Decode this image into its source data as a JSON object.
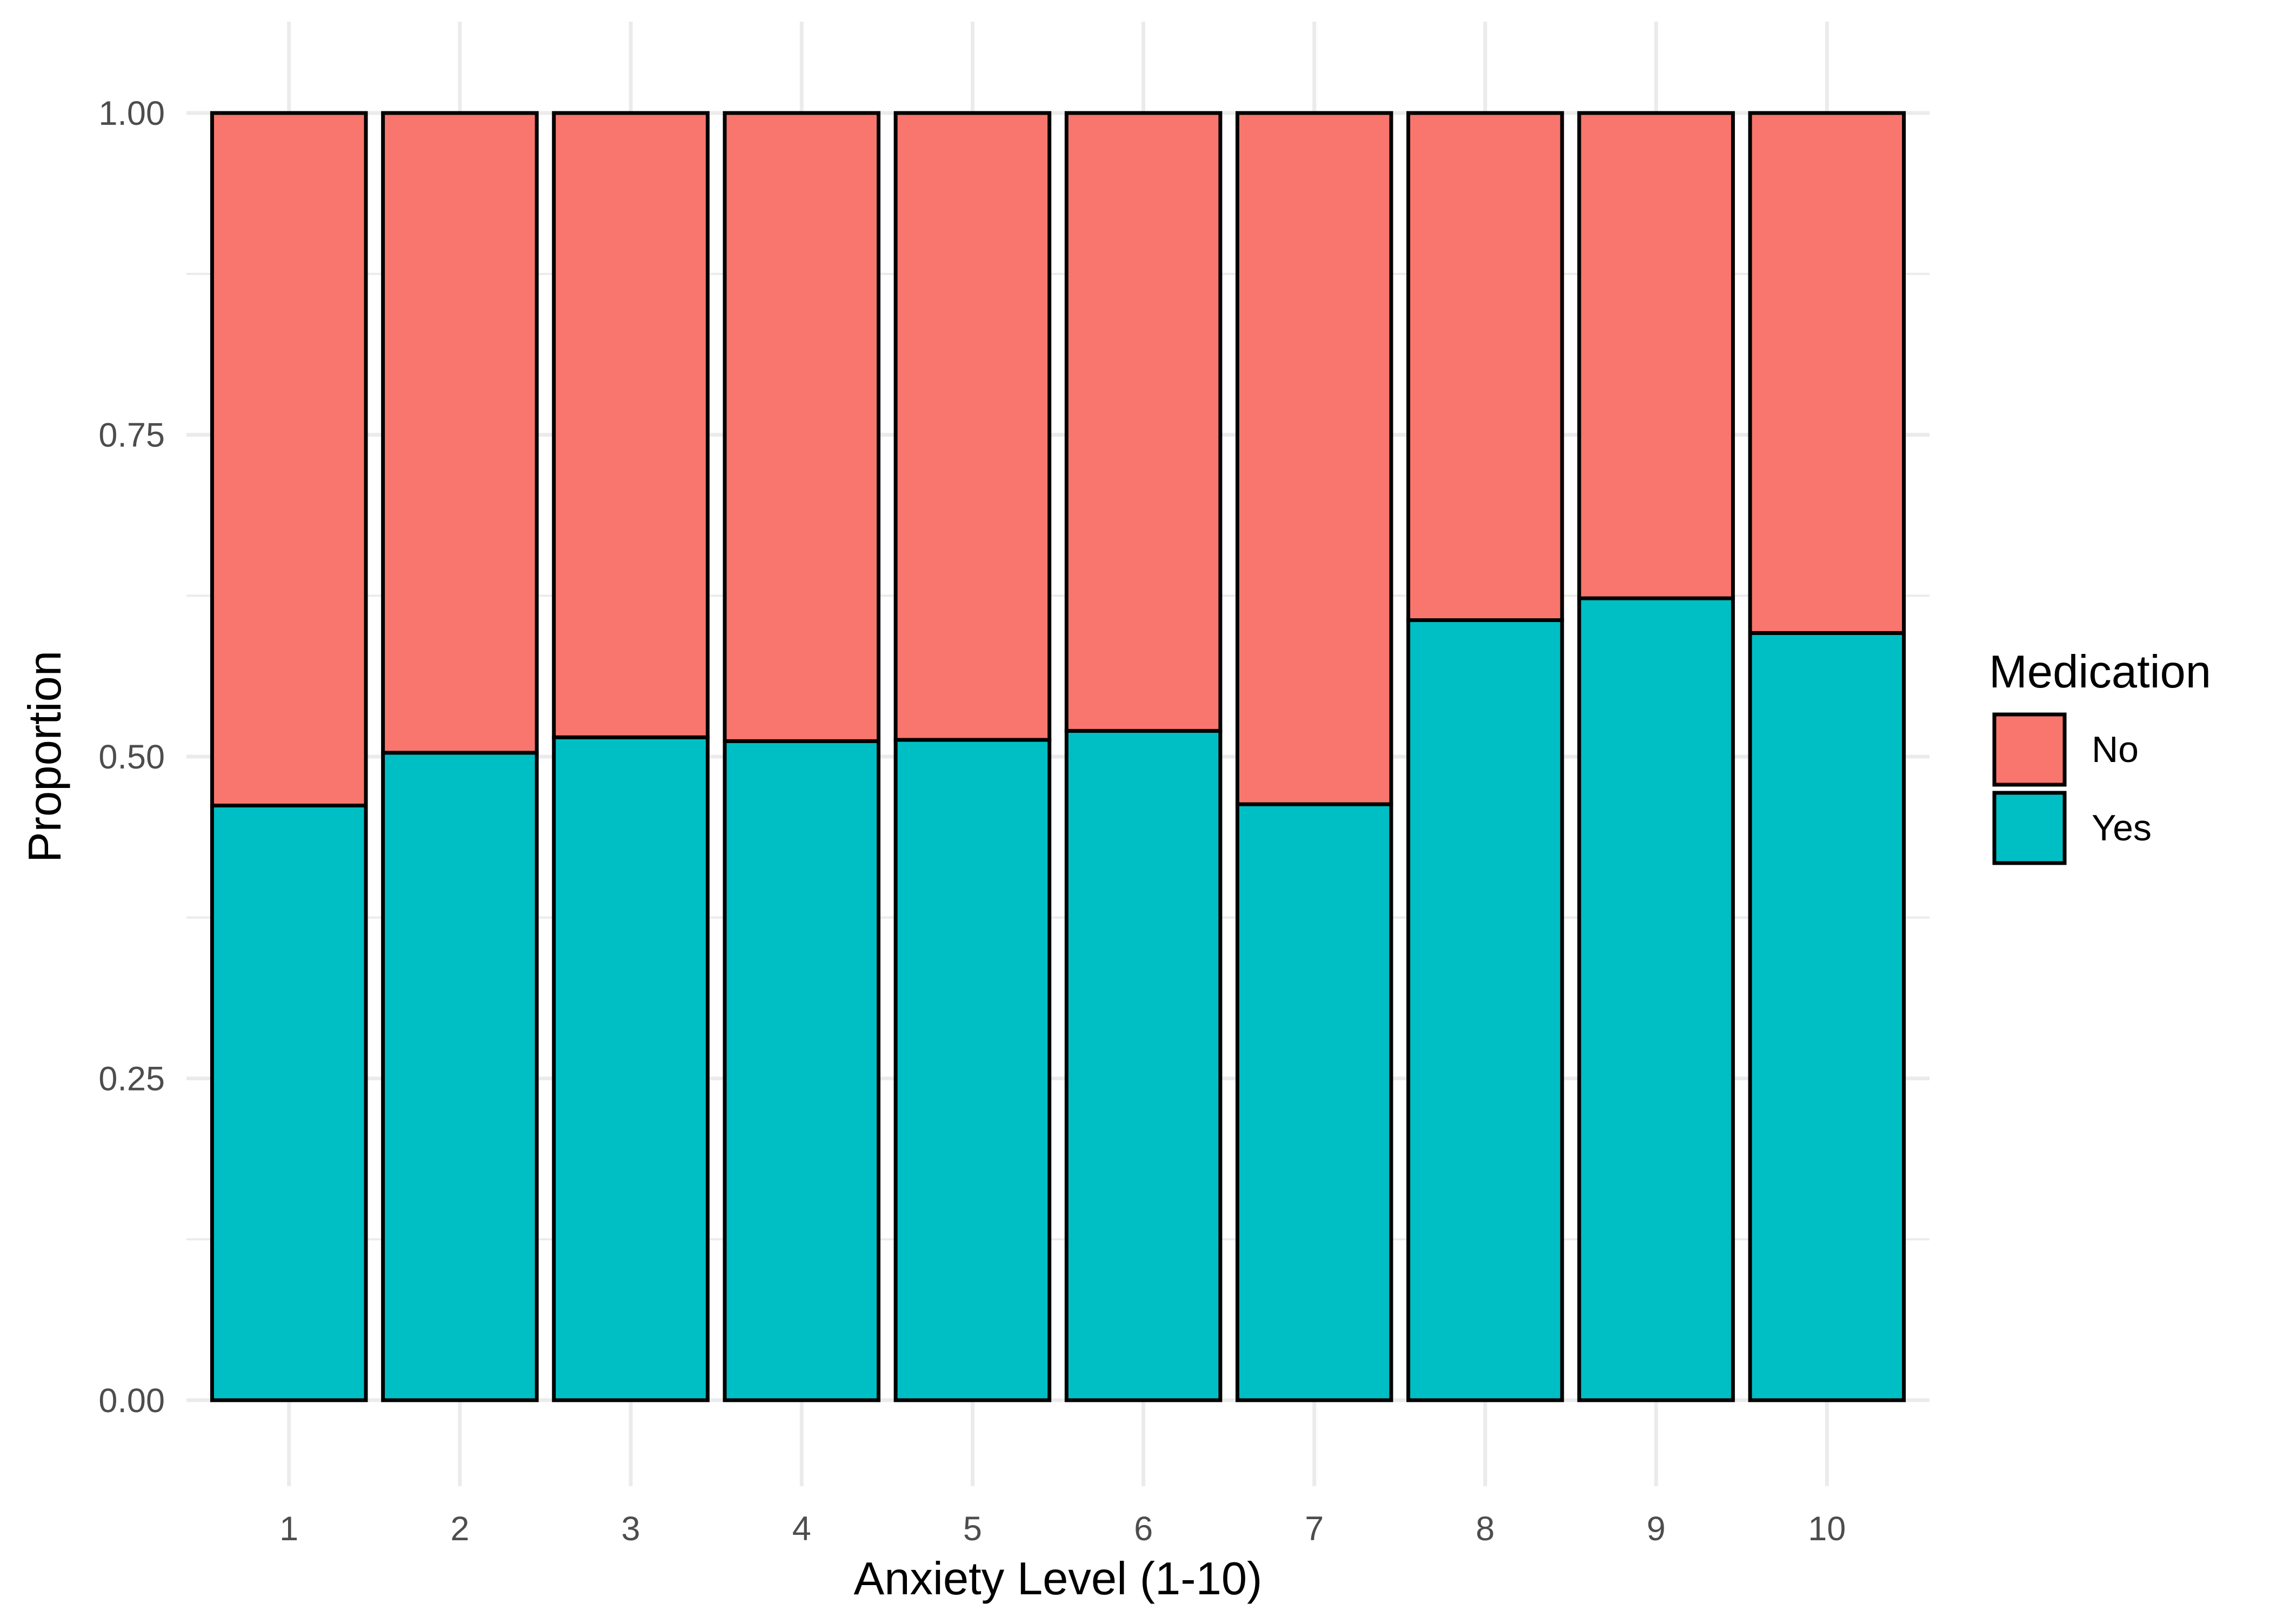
{
  "chart_data": {
    "type": "bar",
    "stacked": true,
    "title": "",
    "xlabel": "Anxiety Level (1-10)",
    "ylabel": "Proportion",
    "categories": [
      "1",
      "2",
      "3",
      "4",
      "5",
      "6",
      "7",
      "8",
      "9",
      "10"
    ],
    "series": [
      {
        "name": "Yes",
        "color": "#00BFC4",
        "values": [
          0.462,
          0.503,
          0.515,
          0.512,
          0.513,
          0.52,
          0.463,
          0.606,
          0.623,
          0.596
        ]
      },
      {
        "name": "No",
        "color": "#F8766D",
        "values": [
          0.538,
          0.497,
          0.485,
          0.488,
          0.487,
          0.48,
          0.537,
          0.394,
          0.377,
          0.404
        ]
      }
    ],
    "ylim": [
      0,
      1
    ],
    "yticks": [
      "0.00",
      "0.25",
      "0.50",
      "0.75",
      "1.00"
    ],
    "grid": true,
    "legend": {
      "title": "Medication",
      "position": "right",
      "entries": [
        {
          "label": "No",
          "color": "#F8766D"
        },
        {
          "label": "Yes",
          "color": "#00BFC4"
        }
      ]
    }
  }
}
